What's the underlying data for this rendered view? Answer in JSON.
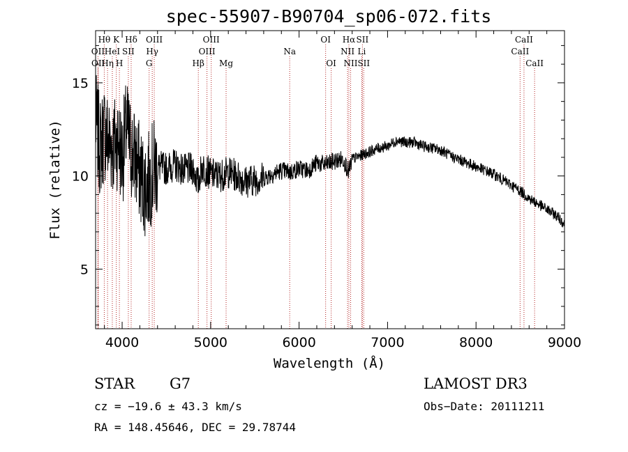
{
  "chart_data": {
    "type": "line",
    "title": "spec-55907-B90704_sp06-072.fits",
    "xlabel": "Wavelength (Å)",
    "ylabel": "Flux (relative)",
    "xlim": [
      3700,
      9000
    ],
    "ylim": [
      1.8,
      17.8
    ],
    "xticks": [
      4000,
      5000,
      6000,
      7000,
      8000,
      9000
    ],
    "yticks": [
      5,
      10,
      15
    ],
    "series": [
      {
        "name": "spectrum",
        "x": [
          3700,
          3750,
          3800,
          3850,
          3900,
          3950,
          4000,
          4050,
          4100,
          4150,
          4200,
          4250,
          4300,
          4350,
          4400,
          4500,
          4600,
          4700,
          4800,
          4861,
          4900,
          5000,
          5100,
          5200,
          5300,
          5400,
          5500,
          5600,
          5700,
          5800,
          5900,
          6000,
          6100,
          6200,
          6300,
          6400,
          6500,
          6563,
          6600,
          6700,
          6800,
          6900,
          7000,
          7100,
          7200,
          7300,
          7400,
          7500,
          7600,
          7700,
          7800,
          7900,
          8000,
          8100,
          8200,
          8300,
          8400,
          8500,
          8600,
          8700,
          8800,
          8900,
          8950,
          9000
        ],
        "y": [
          13.0,
          11.5,
          12.4,
          11.8,
          11.6,
          12.0,
          11.0,
          12.6,
          11.4,
          10.9,
          10.2,
          9.4,
          9.7,
          10.3,
          10.5,
          10.4,
          10.6,
          10.3,
          10.4,
          9.6,
          10.5,
          10.1,
          10.0,
          10.2,
          10.0,
          9.7,
          9.8,
          9.9,
          10.1,
          10.3,
          10.2,
          10.4,
          10.3,
          10.7,
          10.6,
          10.8,
          10.9,
          10.2,
          10.9,
          11.1,
          11.3,
          11.5,
          11.6,
          11.9,
          11.8,
          11.8,
          11.6,
          11.5,
          11.4,
          11.1,
          10.9,
          10.7,
          10.5,
          10.3,
          10.1,
          9.8,
          9.5,
          9.2,
          8.8,
          8.5,
          8.2,
          7.9,
          7.7,
          7.4
        ]
      }
    ],
    "lines": [
      {
        "label": "Hθ",
        "x": 3798,
        "row": 0
      },
      {
        "label": "OII",
        "x": 3727,
        "row": 1
      },
      {
        "label": "OII",
        "x": 3729,
        "row": 2
      },
      {
        "label": "HeI",
        "x": 3889,
        "row": 1
      },
      {
        "label": "Hη",
        "x": 3835,
        "row": 2
      },
      {
        "label": "K",
        "x": 3934,
        "row": 0
      },
      {
        "label": "SII",
        "x": 4070,
        "row": 1
      },
      {
        "label": "H",
        "x": 3969,
        "row": 2
      },
      {
        "label": "Hδ",
        "x": 4102,
        "row": 0
      },
      {
        "label": "OIII",
        "x": 4363,
        "row": 0
      },
      {
        "label": "Hγ",
        "x": 4340,
        "row": 1
      },
      {
        "label": "G",
        "x": 4305,
        "row": 2
      },
      {
        "label": "Hβ",
        "x": 4861,
        "row": 2
      },
      {
        "label": "OIII",
        "x": 5007,
        "row": 0
      },
      {
        "label": "OIII",
        "x": 4959,
        "row": 1
      },
      {
        "label": "Mg",
        "x": 5175,
        "row": 2
      },
      {
        "label": "Na",
        "x": 5894,
        "row": 1
      },
      {
        "label": "OI",
        "x": 6300,
        "row": 0
      },
      {
        "label": "OI",
        "x": 6363,
        "row": 2
      },
      {
        "label": "Hα",
        "x": 6563,
        "row": 0
      },
      {
        "label": "NII",
        "x": 6548,
        "row": 1
      },
      {
        "label": "NII",
        "x": 6583,
        "row": 2
      },
      {
        "label": "SII",
        "x": 6716,
        "row": 0
      },
      {
        "label": "Li",
        "x": 6708,
        "row": 1
      },
      {
        "label": "SII",
        "x": 6731,
        "row": 2
      },
      {
        "label": "CaII",
        "x": 8542,
        "row": 0
      },
      {
        "label": "CaII",
        "x": 8498,
        "row": 1
      },
      {
        "label": "CaII",
        "x": 8662,
        "row": 2
      }
    ]
  },
  "info": {
    "class": "STAR",
    "subclass": "G7",
    "survey": "LAMOST DR3",
    "cz": "cz = −19.6 ± 43.3 km/s",
    "obs_date": "Obs−Date: 20111211",
    "coords": "RA = 148.45646, DEC =  29.78744"
  },
  "colors": {
    "line_marker": "#b22222",
    "spectrum": "#000000"
  }
}
